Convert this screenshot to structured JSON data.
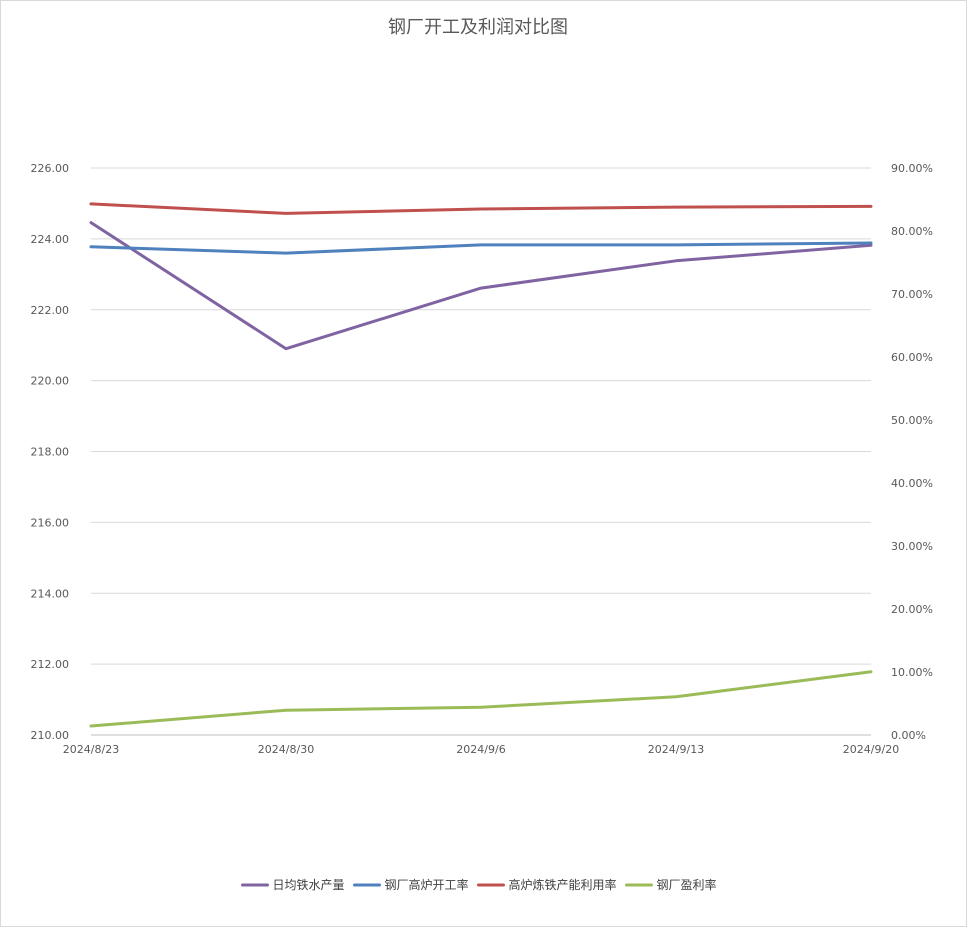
{
  "chart_data": {
    "type": "line",
    "title": "钢厂开工及利润对比图",
    "categories": [
      "2024/8/23",
      "2024/8/30",
      "2024/9/6",
      "2024/9/13",
      "2024/9/20"
    ],
    "y_left": {
      "ylim": [
        210,
        226
      ],
      "ticks": [
        210,
        212,
        214,
        216,
        218,
        220,
        222,
        224,
        226
      ],
      "tick_labels": [
        "210.00",
        "212.00",
        "214.00",
        "216.00",
        "218.00",
        "220.00",
        "222.00",
        "224.00",
        "226.00"
      ]
    },
    "y_right": {
      "ylim": [
        0,
        0.9
      ],
      "ticks": [
        0,
        0.1,
        0.2,
        0.3,
        0.4,
        0.5,
        0.6,
        0.7,
        0.8,
        0.9
      ],
      "tick_labels": [
        "0.00%",
        "10.00%",
        "20.00%",
        "30.00%",
        "40.00%",
        "50.00%",
        "60.00%",
        "70.00%",
        "80.00%",
        "90.00%"
      ]
    },
    "grid": true,
    "legend_position": "bottom",
    "series": [
      {
        "name": "日均铁水产量",
        "axis": "left",
        "color": "#8064a2",
        "values": [
          224.46,
          220.9,
          222.61,
          223.38,
          223.82
        ]
      },
      {
        "name": "钢厂高炉开工率",
        "axis": "right",
        "color": "#4f81bd",
        "values": [
          0.775,
          0.765,
          0.778,
          0.778,
          0.781
        ]
      },
      {
        "name": "高炉炼铁产能利用率",
        "axis": "right",
        "color": "#c0504d",
        "values": [
          0.843,
          0.828,
          0.835,
          0.838,
          0.839
        ]
      },
      {
        "name": "钢厂盈利率",
        "axis": "right",
        "color": "#9bbb59",
        "values": [
          0.0143,
          0.0394,
          0.0442,
          0.0606,
          0.1004
        ]
      }
    ]
  }
}
